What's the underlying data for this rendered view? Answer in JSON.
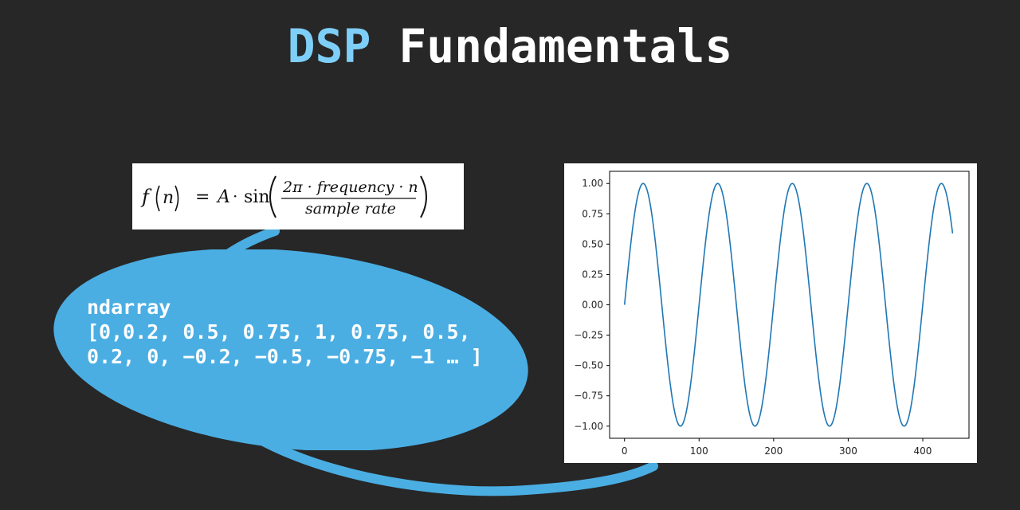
{
  "title": {
    "accent": "DSP",
    "rest": " Fundamentals"
  },
  "formula": {
    "lhs_f": "f",
    "lhs_n": "n",
    "eq": "=",
    "amp": "A",
    "dot": "·",
    "sin": "sin",
    "numerator": "2π · frequency · n",
    "denominator": "sample rate"
  },
  "bubble": {
    "line1": "ndarray",
    "line2": "[0,0.2, 0.5, 0.75, 1, 0.75, 0.5,",
    "line3": "0.2, 0, −0.2, −0.5, −0.75, −1 … ]"
  },
  "colors": {
    "background": "#272727",
    "accent_title": "#7ecff7",
    "bubble": "#4aaee3",
    "line": "#1f77b4"
  },
  "chart_data": {
    "type": "line",
    "function": "sin(2*pi*n/100)",
    "x_range": [
      0,
      440
    ],
    "period": 100,
    "amplitude": 1,
    "xlim": [
      -20,
      462
    ],
    "ylim": [
      -1.1,
      1.1
    ],
    "xticks": [
      "0",
      "100",
      "200",
      "300",
      "400"
    ],
    "yticks": [
      "1.00",
      "0.75",
      "0.50",
      "0.25",
      "0.00",
      "−0.25",
      "−0.50",
      "−0.75",
      "−1.00"
    ],
    "xtick_values": [
      0,
      100,
      200,
      300,
      400
    ],
    "ytick_values": [
      1,
      0.75,
      0.5,
      0.25,
      0,
      -0.25,
      -0.5,
      -0.75,
      -1
    ],
    "grid": false,
    "title": "",
    "xlabel": "",
    "ylabel": ""
  }
}
